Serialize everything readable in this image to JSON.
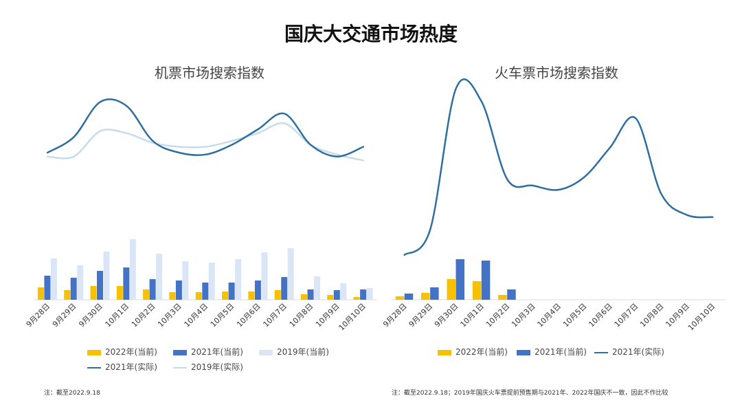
{
  "page": {
    "title": "国庆大交通市场热度"
  },
  "colors": {
    "y2022": "#F5C100",
    "y2021": "#4472C4",
    "y2019": "#DAE6F5",
    "line2021": "#2E6E9E",
    "line2019": "#C5DCEC"
  },
  "chart_data": [
    {
      "type": "bar+line",
      "title": "机票市场搜索指数",
      "categories": [
        "9月28日",
        "9月29日",
        "9月30日",
        "10月1日",
        "10月2日",
        "10月3日",
        "10月4日",
        "10月5日",
        "10月6日",
        "10月7日",
        "10月8日",
        "10月9日",
        "10月10日"
      ],
      "bar_series": [
        {
          "name": "2022年(当前)",
          "values": [
            18,
            14,
            20,
            20,
            15,
            11,
            11,
            12,
            12,
            14,
            8,
            7,
            4
          ]
        },
        {
          "name": "2021年(当前)",
          "values": [
            35,
            32,
            42,
            47,
            30,
            28,
            25,
            25,
            28,
            33,
            15,
            14,
            15
          ]
        },
        {
          "name": "2019年(当前)",
          "values": [
            60,
            50,
            70,
            88,
            67,
            56,
            54,
            59,
            69,
            75,
            34,
            24,
            17
          ]
        }
      ],
      "line_series": [
        {
          "name": "2021年(实际)",
          "values": [
            64,
            72,
            90,
            88,
            70,
            64,
            63,
            68,
            76,
            84,
            68,
            62,
            67
          ]
        },
        {
          "name": "2019年(实际)",
          "values": [
            62,
            62,
            75,
            74,
            69,
            67,
            67,
            70,
            74,
            79,
            68,
            63,
            60
          ]
        }
      ],
      "bar_ylim": [
        0,
        100
      ],
      "line_ylim": [
        40,
        100
      ],
      "legend": [
        "2022年(当前)",
        "2021年(当前)",
        "2019年(当前)",
        "2021年(实际)",
        "2019年(实际)"
      ],
      "legend_position": "bottom"
    },
    {
      "type": "bar+line",
      "title": "火车票市场搜索指数",
      "categories": [
        "9月28日",
        "9月29日",
        "9月30日",
        "10月1日",
        "10月2日",
        "10月3日",
        "10月4日",
        "10月5日",
        "10月6日",
        "10月7日",
        "10月8日",
        "10月9日",
        "10月10日"
      ],
      "bar_series": [
        {
          "name": "2022年(当前)",
          "values": [
            5,
            10,
            30,
            27,
            7,
            null,
            null,
            null,
            null,
            null,
            null,
            null,
            null
          ]
        },
        {
          "name": "2021年(当前)",
          "values": [
            9,
            18,
            59,
            57,
            15,
            null,
            null,
            null,
            null,
            null,
            null,
            null,
            null
          ]
        }
      ],
      "line_series": [
        {
          "name": "2021年(实际)",
          "values": [
            23,
            35,
            102,
            96,
            59,
            56,
            54,
            60,
            74,
            88,
            52,
            42,
            41
          ]
        }
      ],
      "bar_ylim": [
        0,
        100
      ],
      "line_ylim": [
        20,
        105
      ],
      "legend": [
        "2022年(当前)",
        "2021年(当前)",
        "2021年(实际)"
      ],
      "legend_position": "bottom"
    }
  ],
  "notes": {
    "left": "注：截至2022.9.18",
    "right": "注：截至2022.9.18；2019年国庆火车票提前预售期与2021年、2022年国庆不一致，因此不作比较"
  }
}
